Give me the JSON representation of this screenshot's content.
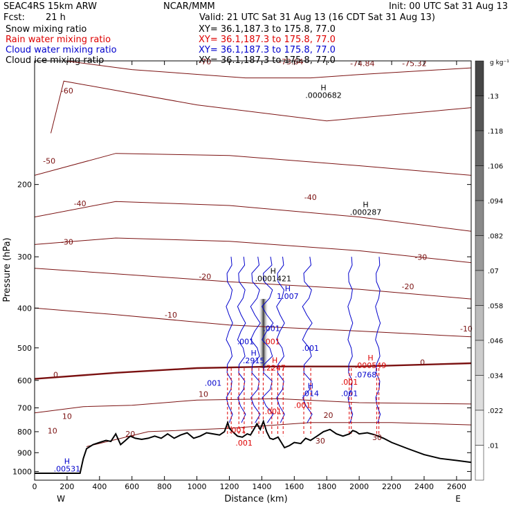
{
  "header": {
    "model": "SEAC4RS 15km ARW",
    "org": "NCAR/MMM",
    "init": "Init: 00 UTC Sat 31 Aug 13",
    "fcst_label": "Fcst:",
    "fcst_value": "21 h",
    "valid": "Valid: 21 UTC Sat 31 Aug 13 (16 CDT Sat 31 Aug 13)"
  },
  "fields": [
    {
      "name": "Snow mixing ratio",
      "xy": "XY=  36.1,187.3 to 175.8, 77.0",
      "color": "#000000"
    },
    {
      "name": "Rain water mixing ratio",
      "xy": "XY=  36.1,187.3 to 175.8, 77.0",
      "color": "#dd0000"
    },
    {
      "name": "Cloud water mixing ratio",
      "xy": "XY=  36.1,187.3 to 175.8, 77.0",
      "color": "#0000cc"
    },
    {
      "name": "Cloud ice mixing ratio",
      "xy": "XY=  36.1,187.3 to 175.8, 77.0",
      "color": "#000000"
    }
  ],
  "colorbar": {
    "unit": "g kg⁻¹",
    "ticks": [
      ".13",
      ".118",
      ".106",
      ".094",
      ".082",
      ".07",
      ".058",
      ".046",
      ".034",
      ".022",
      ".01"
    ]
  },
  "chart_data": {
    "type": "cross-section",
    "xlabel": "Distance (km)",
    "ylabel": "Pressure (hPa)",
    "xlim": [
      0,
      2690
    ],
    "ylim": [
      1050,
      100
    ],
    "y_scale": "log",
    "x_ticks": [
      0,
      200,
      400,
      600,
      800,
      1000,
      1200,
      1400,
      1600,
      1800,
      2000,
      2200,
      2400,
      2600
    ],
    "y_ticks": [
      200,
      300,
      400,
      500,
      600,
      700,
      800,
      900,
      1000
    ],
    "x_end_labels": {
      "left": "W",
      "right": "E"
    },
    "terrain": [
      [
        0,
        1010
      ],
      [
        280,
        1010
      ],
      [
        300,
        930
      ],
      [
        320,
        880
      ],
      [
        360,
        860
      ],
      [
        400,
        850
      ],
      [
        440,
        840
      ],
      [
        470,
        845
      ],
      [
        500,
        810
      ],
      [
        530,
        860
      ],
      [
        560,
        840
      ],
      [
        590,
        820
      ],
      [
        620,
        830
      ],
      [
        660,
        835
      ],
      [
        700,
        830
      ],
      [
        740,
        820
      ],
      [
        780,
        830
      ],
      [
        820,
        810
      ],
      [
        860,
        830
      ],
      [
        900,
        815
      ],
      [
        940,
        805
      ],
      [
        980,
        830
      ],
      [
        1020,
        820
      ],
      [
        1060,
        805
      ],
      [
        1100,
        810
      ],
      [
        1140,
        815
      ],
      [
        1170,
        800
      ],
      [
        1190,
        760
      ],
      [
        1200,
        785
      ],
      [
        1220,
        800
      ],
      [
        1250,
        820
      ],
      [
        1280,
        825
      ],
      [
        1310,
        810
      ],
      [
        1330,
        815
      ],
      [
        1350,
        790
      ],
      [
        1370,
        765
      ],
      [
        1390,
        790
      ],
      [
        1410,
        755
      ],
      [
        1430,
        800
      ],
      [
        1450,
        830
      ],
      [
        1470,
        835
      ],
      [
        1500,
        825
      ],
      [
        1540,
        875
      ],
      [
        1570,
        865
      ],
      [
        1600,
        850
      ],
      [
        1640,
        855
      ],
      [
        1670,
        830
      ],
      [
        1700,
        840
      ],
      [
        1740,
        820
      ],
      [
        1780,
        800
      ],
      [
        1820,
        790
      ],
      [
        1860,
        810
      ],
      [
        1900,
        820
      ],
      [
        1940,
        810
      ],
      [
        1960,
        795
      ],
      [
        1980,
        800
      ],
      [
        2000,
        810
      ],
      [
        2050,
        805
      ],
      [
        2100,
        815
      ],
      [
        2150,
        830
      ],
      [
        2200,
        850
      ],
      [
        2300,
        880
      ],
      [
        2400,
        910
      ],
      [
        2500,
        930
      ],
      [
        2600,
        940
      ],
      [
        2690,
        950
      ]
    ],
    "temperature_contours": [
      {
        "label": "-70",
        "points": [
          [
            190,
            100
          ],
          [
            600,
            105
          ],
          [
            1300,
            110
          ],
          [
            1700,
            110
          ],
          [
            2000,
            108
          ],
          [
            2690,
            104
          ]
        ],
        "label_at": [
          910,
          101
        ]
      },
      {
        "label": "-60",
        "points": [
          [
            100,
            150
          ],
          [
            180,
            112
          ],
          [
            1000,
            128
          ],
          [
            1800,
            140
          ],
          [
            2690,
            130
          ]
        ],
        "label_at": [
          190,
          120
        ]
      },
      {
        "label": "-50",
        "points": [
          [
            0,
            190
          ],
          [
            500,
            168
          ],
          [
            1200,
            170
          ],
          [
            2000,
            180
          ],
          [
            2690,
            190
          ]
        ],
        "label_at": [
          90,
          180
        ]
      },
      {
        "label": "-40",
        "points": [
          [
            0,
            240
          ],
          [
            500,
            220
          ],
          [
            1200,
            225
          ],
          [
            2000,
            240
          ],
          [
            2690,
            260
          ]
        ],
        "label_at": [
          270,
          226
        ]
      },
      {
        "label": "-30",
        "points": [
          [
            0,
            280
          ],
          [
            500,
            270
          ],
          [
            1200,
            275
          ],
          [
            2000,
            290
          ],
          [
            2690,
            310
          ]
        ],
        "label_at": [
          190,
          282
        ]
      },
      {
        "label": "-20",
        "points": [
          [
            0,
            320
          ],
          [
            500,
            330
          ],
          [
            1200,
            345
          ],
          [
            2000,
            360
          ],
          [
            2690,
            380
          ]
        ],
        "label_at": [
          380,
          339
        ]
      },
      {
        "label": "-10",
        "points": [
          [
            0,
            400
          ],
          [
            500,
            415
          ],
          [
            1200,
            440
          ],
          [
            2000,
            455
          ],
          [
            2690,
            470
          ]
        ],
        "label_at": [
          700,
          424
        ]
      },
      {
        "label": "0",
        "points": [
          [
            0,
            595
          ],
          [
            500,
            575
          ],
          [
            1000,
            560
          ],
          [
            1500,
            555
          ],
          [
            2000,
            555
          ],
          [
            2690,
            545
          ]
        ],
        "label_at": [
          200,
          585
        ],
        "bold": true
      },
      {
        "label": "10",
        "points": [
          [
            0,
            720
          ],
          [
            300,
            695
          ],
          [
            600,
            690
          ],
          [
            1000,
            670
          ],
          [
            1500,
            665
          ],
          [
            2000,
            680
          ],
          [
            2690,
            685
          ]
        ],
        "label_at": [
          500,
          693
        ]
      },
      {
        "label": "20",
        "points": [
          [
            320,
            870
          ],
          [
            700,
            800
          ],
          [
            1200,
            785
          ],
          [
            1700,
            760
          ],
          [
            2200,
            760
          ],
          [
            2690,
            770
          ]
        ],
        "label_at": [
          700,
          800
        ]
      }
    ],
    "contour_labels": [
      {
        "text": "-70",
        "x": 1050,
        "y": 102
      },
      {
        "text": "-73.64",
        "x": 1580,
        "y": 102
      },
      {
        "text": "-74.84",
        "x": 2020,
        "y": 103
      },
      {
        "text": "-75.32",
        "x": 2340,
        "y": 103
      },
      {
        "text": "-60",
        "x": 200,
        "y": 120
      },
      {
        "text": "-50",
        "x": 90,
        "y": 178
      },
      {
        "text": "-40",
        "x": 280,
        "y": 226
      },
      {
        "text": "-40",
        "x": 1700,
        "y": 218
      },
      {
        "text": "-30",
        "x": 200,
        "y": 280
      },
      {
        "text": "-30",
        "x": 2380,
        "y": 305
      },
      {
        "text": "-20",
        "x": 1050,
        "y": 340
      },
      {
        "text": "-20",
        "x": 2300,
        "y": 360
      },
      {
        "text": "-10",
        "x": 840,
        "y": 422
      },
      {
        "text": "-10",
        "x": 2660,
        "y": 456
      },
      {
        "text": "0",
        "x": 130,
        "y": 590
      },
      {
        "text": "0",
        "x": 2390,
        "y": 550
      },
      {
        "text": "10",
        "x": 1040,
        "y": 658
      },
      {
        "text": "10",
        "x": 200,
        "y": 745
      },
      {
        "text": "10",
        "x": 110,
        "y": 808
      },
      {
        "text": "20",
        "x": 590,
        "y": 822
      },
      {
        "text": "20",
        "x": 1810,
        "y": 740
      },
      {
        "text": "30",
        "x": 2110,
        "y": 838
      },
      {
        "text": "30",
        "x": 1760,
        "y": 855
      }
    ],
    "maxima_labels": [
      {
        "h": "H",
        "value": ".0000682",
        "x": 1780,
        "y": 123,
        "color": "#000000"
      },
      {
        "h": "H",
        "value": ".000287",
        "x": 2040,
        "y": 237,
        "color": "#000000"
      },
      {
        "h": "H",
        "value": ".0001421",
        "x": 1470,
        "y": 344,
        "color": "#000000"
      },
      {
        "h": "H",
        "value": "1.007",
        "x": 1560,
        "y": 380,
        "color": "#0000cc"
      },
      {
        "h": "H",
        "value": ".000549",
        "x": 2070,
        "y": 560,
        "color": "#dd0000"
      },
      {
        "h": "",
        "value": ".0768",
        "x": 2040,
        "y": 590,
        "color": "#0000cc"
      },
      {
        "h": "H",
        "value": ".2915",
        "x": 1350,
        "y": 545,
        "color": "#0000cc"
      },
      {
        "h": "H",
        "value": ".2247",
        "x": 1480,
        "y": 568,
        "color": "#dd0000"
      },
      {
        "h": "H",
        "value": ".014",
        "x": 1700,
        "y": 655,
        "color": "#0000cc"
      },
      {
        "h": "H",
        "value": ".00531",
        "x": 200,
        "y": 1000,
        "color": "#0000cc"
      },
      {
        "h": "",
        "value": ".001",
        "x": 1460,
        "y": 455,
        "color": "#0000cc"
      },
      {
        "h": "",
        "value": ".001",
        "x": 1300,
        "y": 490,
        "color": "#0000cc"
      },
      {
        "h": "",
        "value": ".001",
        "x": 1460,
        "y": 490,
        "color": "#dd0000"
      },
      {
        "h": "",
        "value": ".001",
        "x": 1700,
        "y": 508,
        "color": "#0000cc"
      },
      {
        "h": "",
        "value": ".001",
        "x": 1100,
        "y": 618,
        "color": "#0000cc"
      },
      {
        "h": "",
        "value": ".001",
        "x": 1940,
        "y": 615,
        "color": "#dd0000"
      },
      {
        "h": "",
        "value": ".001",
        "x": 1940,
        "y": 655,
        "color": "#0000cc"
      },
      {
        "h": "",
        "value": ".001",
        "x": 1470,
        "y": 725,
        "color": "#dd0000"
      },
      {
        "h": "",
        "value": ".001",
        "x": 1650,
        "y": 700,
        "color": "#dd0000"
      },
      {
        "h": "",
        "value": ".001",
        "x": 1250,
        "y": 805,
        "color": "#dd0000"
      },
      {
        "h": "",
        "value": ".001",
        "x": 1290,
        "y": 865,
        "color": "#dd0000"
      }
    ],
    "cloud_water_columns": [
      [
        1180,
        1220
      ],
      [
        1250,
        1300
      ],
      [
        1330,
        1390
      ],
      [
        1400,
        1470
      ],
      [
        1490,
        1540
      ],
      [
        1650,
        1710
      ],
      [
        1930,
        1960
      ],
      [
        2100,
        2130
      ]
    ],
    "snow_shading": {
      "x": [
        1380,
        1440
      ],
      "p": [
        380,
        560
      ]
    }
  }
}
